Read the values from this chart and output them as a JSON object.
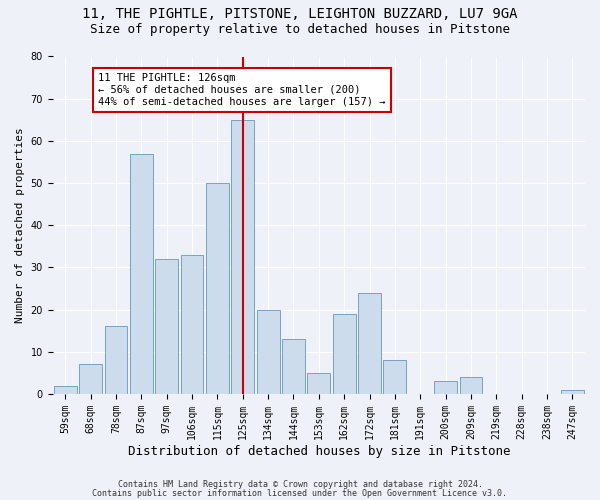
{
  "title1": "11, THE PIGHTLE, PITSTONE, LEIGHTON BUZZARD, LU7 9GA",
  "title2": "Size of property relative to detached houses in Pitstone",
  "xlabel": "Distribution of detached houses by size in Pitstone",
  "ylabel": "Number of detached properties",
  "categories": [
    "59sqm",
    "68sqm",
    "78sqm",
    "87sqm",
    "97sqm",
    "106sqm",
    "115sqm",
    "125sqm",
    "134sqm",
    "144sqm",
    "153sqm",
    "162sqm",
    "172sqm",
    "181sqm",
    "191sqm",
    "200sqm",
    "209sqm",
    "219sqm",
    "228sqm",
    "238sqm",
    "247sqm"
  ],
  "values": [
    2,
    7,
    16,
    57,
    32,
    33,
    50,
    65,
    20,
    13,
    5,
    19,
    24,
    8,
    0,
    3,
    4,
    0,
    0,
    0,
    1
  ],
  "bar_color": "#ccdcec",
  "bar_edge_color": "#6699bb",
  "vline_color": "#cc0000",
  "vline_x_idx": 7,
  "annotation_text": "11 THE PIGHTLE: 126sqm\n← 56% of detached houses are smaller (200)\n44% of semi-detached houses are larger (157) →",
  "annotation_box_color": "#ffffff",
  "annotation_box_edge": "#cc0000",
  "ylim": [
    0,
    80
  ],
  "yticks": [
    0,
    10,
    20,
    30,
    40,
    50,
    60,
    70,
    80
  ],
  "footer1": "Contains HM Land Registry data © Crown copyright and database right 2024.",
  "footer2": "Contains public sector information licensed under the Open Government Licence v3.0.",
  "bg_color": "#eef2f8",
  "grid_color": "#ffffff",
  "title_fontsize": 10,
  "subtitle_fontsize": 9,
  "ylabel_fontsize": 8,
  "xlabel_fontsize": 9,
  "tick_fontsize": 7,
  "footer_fontsize": 6,
  "annot_fontsize": 7.5
}
